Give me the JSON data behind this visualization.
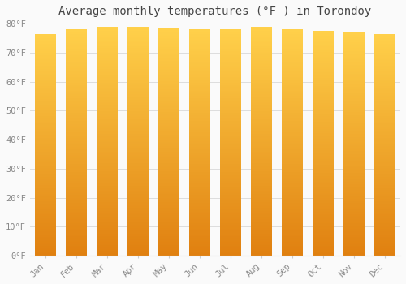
{
  "title": "Average monthly temperatures (°F ) in Torondoy",
  "months": [
    "Jan",
    "Feb",
    "Mar",
    "Apr",
    "May",
    "Jun",
    "Jul",
    "Aug",
    "Sep",
    "Oct",
    "Nov",
    "Dec"
  ],
  "values": [
    76.5,
    78.0,
    79.0,
    79.0,
    78.5,
    78.0,
    78.0,
    79.0,
    78.0,
    77.5,
    77.0,
    76.5
  ],
  "bar_color_top": "#FFD04A",
  "bar_color_bottom": "#E08010",
  "ylim": [
    0,
    80
  ],
  "yticks": [
    0,
    10,
    20,
    30,
    40,
    50,
    60,
    70,
    80
  ],
  "ytick_labels": [
    "0°F",
    "10°F",
    "20°F",
    "30°F",
    "40°F",
    "50°F",
    "60°F",
    "70°F",
    "80°F"
  ],
  "background_color": "#FAFAFA",
  "grid_color": "#DDDDDD",
  "title_fontsize": 10,
  "tick_fontsize": 7.5,
  "title_font": "monospace",
  "bar_width": 0.7,
  "num_segments": 200
}
